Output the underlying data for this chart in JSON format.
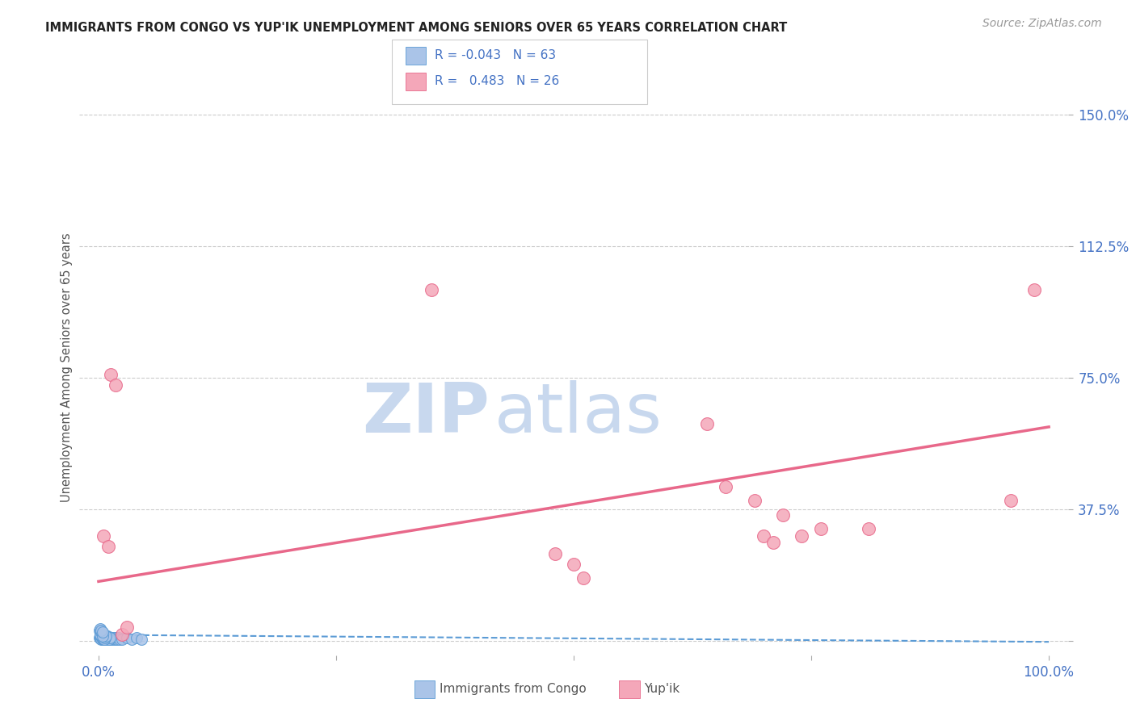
{
  "title": "IMMIGRANTS FROM CONGO VS YUP'IK UNEMPLOYMENT AMONG SENIORS OVER 65 YEARS CORRELATION CHART",
  "source": "Source: ZipAtlas.com",
  "ylabel": "Unemployment Among Seniors over 65 years",
  "xlim": [
    -0.02,
    1.02
  ],
  "ylim": [
    -0.04,
    1.6
  ],
  "x_ticks": [
    0.0,
    0.25,
    0.5,
    0.75,
    1.0
  ],
  "x_tick_labels": [
    "0.0%",
    "",
    "",
    "",
    "100.0%"
  ],
  "y_ticks": [
    0.0,
    0.375,
    0.75,
    1.125,
    1.5
  ],
  "y_tick_labels": [
    "",
    "37.5%",
    "75.0%",
    "112.5%",
    "150.0%"
  ],
  "congo_x": [
    0.001,
    0.002,
    0.002,
    0.003,
    0.003,
    0.004,
    0.004,
    0.005,
    0.005,
    0.006,
    0.006,
    0.007,
    0.007,
    0.008,
    0.008,
    0.009,
    0.01,
    0.01,
    0.011,
    0.012,
    0.013,
    0.014,
    0.015,
    0.016,
    0.017,
    0.018,
    0.019,
    0.02,
    0.021,
    0.022,
    0.003,
    0.004,
    0.005,
    0.006,
    0.002,
    0.003,
    0.004,
    0.005,
    0.007,
    0.008,
    0.009,
    0.01,
    0.011,
    0.012,
    0.002,
    0.003,
    0.004,
    0.005,
    0.006,
    0.007,
    0.008,
    0.001,
    0.002,
    0.003,
    0.004,
    0.025,
    0.03,
    0.035,
    0.04,
    0.045,
    0.002,
    0.003,
    0.004
  ],
  "congo_y": [
    0.01,
    0.008,
    0.015,
    0.01,
    0.005,
    0.01,
    0.005,
    0.015,
    0.01,
    0.005,
    0.01,
    0.005,
    0.01,
    0.005,
    0.01,
    0.015,
    0.01,
    0.005,
    0.01,
    0.005,
    0.01,
    0.005,
    0.01,
    0.005,
    0.01,
    0.005,
    0.01,
    0.005,
    0.01,
    0.005,
    0.015,
    0.01,
    0.005,
    0.01,
    0.02,
    0.015,
    0.01,
    0.005,
    0.01,
    0.015,
    0.005,
    0.01,
    0.005,
    0.01,
    0.025,
    0.015,
    0.01,
    0.02,
    0.005,
    0.01,
    0.015,
    0.03,
    0.02,
    0.025,
    0.015,
    0.005,
    0.01,
    0.005,
    0.01,
    0.005,
    0.035,
    0.03,
    0.025
  ],
  "yupik_x": [
    0.005,
    0.01,
    0.013,
    0.018,
    0.025,
    0.03,
    0.35,
    0.48,
    0.5,
    0.51,
    0.64,
    0.66,
    0.69,
    0.7,
    0.71,
    0.72,
    0.74,
    0.76,
    0.81,
    0.96,
    0.985
  ],
  "yupik_y": [
    0.3,
    0.27,
    0.76,
    0.73,
    0.02,
    0.04,
    1.0,
    0.25,
    0.22,
    0.18,
    0.62,
    0.44,
    0.4,
    0.3,
    0.28,
    0.36,
    0.3,
    0.32,
    0.32,
    0.4,
    1.0
  ],
  "congo_color": "#aac4e8",
  "congo_edge_color": "#5b9bd5",
  "yupik_color": "#f4a7b9",
  "yupik_edge_color": "#e8688a",
  "congo_line_color": "#5b9bd5",
  "yupik_line_color": "#e8688a",
  "tick_label_color": "#4472c4",
  "grid_color": "#cccccc",
  "background_color": "#ffffff",
  "title_color": "#222222",
  "source_color": "#999999",
  "axis_label_color": "#555555",
  "watermark_zip_color": "#c8d8ee",
  "watermark_atlas_color": "#c8d8ee",
  "congo_slope": -0.02,
  "congo_intercept": 0.018,
  "yupik_slope": 0.44,
  "yupik_intercept": 0.17
}
